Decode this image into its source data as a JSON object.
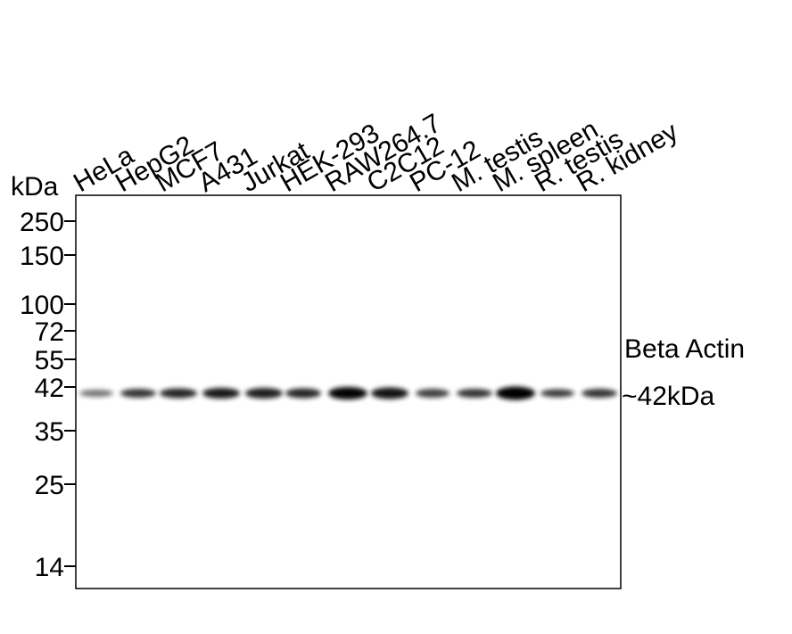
{
  "unit": "kDa",
  "lanes": [
    "HeLa",
    "HepG2",
    "MCF7",
    "A431",
    "Jurkat",
    "HEK-293",
    "RAW264.7",
    "C2C12",
    "PC-12",
    "M. testis",
    "M. spleen",
    "R. testis",
    "R. kidney"
  ],
  "markers": [
    "250",
    "150",
    "100",
    "72",
    "55",
    "42",
    "35",
    "25",
    "14"
  ],
  "annotation": {
    "target": "Beta Actin",
    "size": "~42kDa"
  }
}
